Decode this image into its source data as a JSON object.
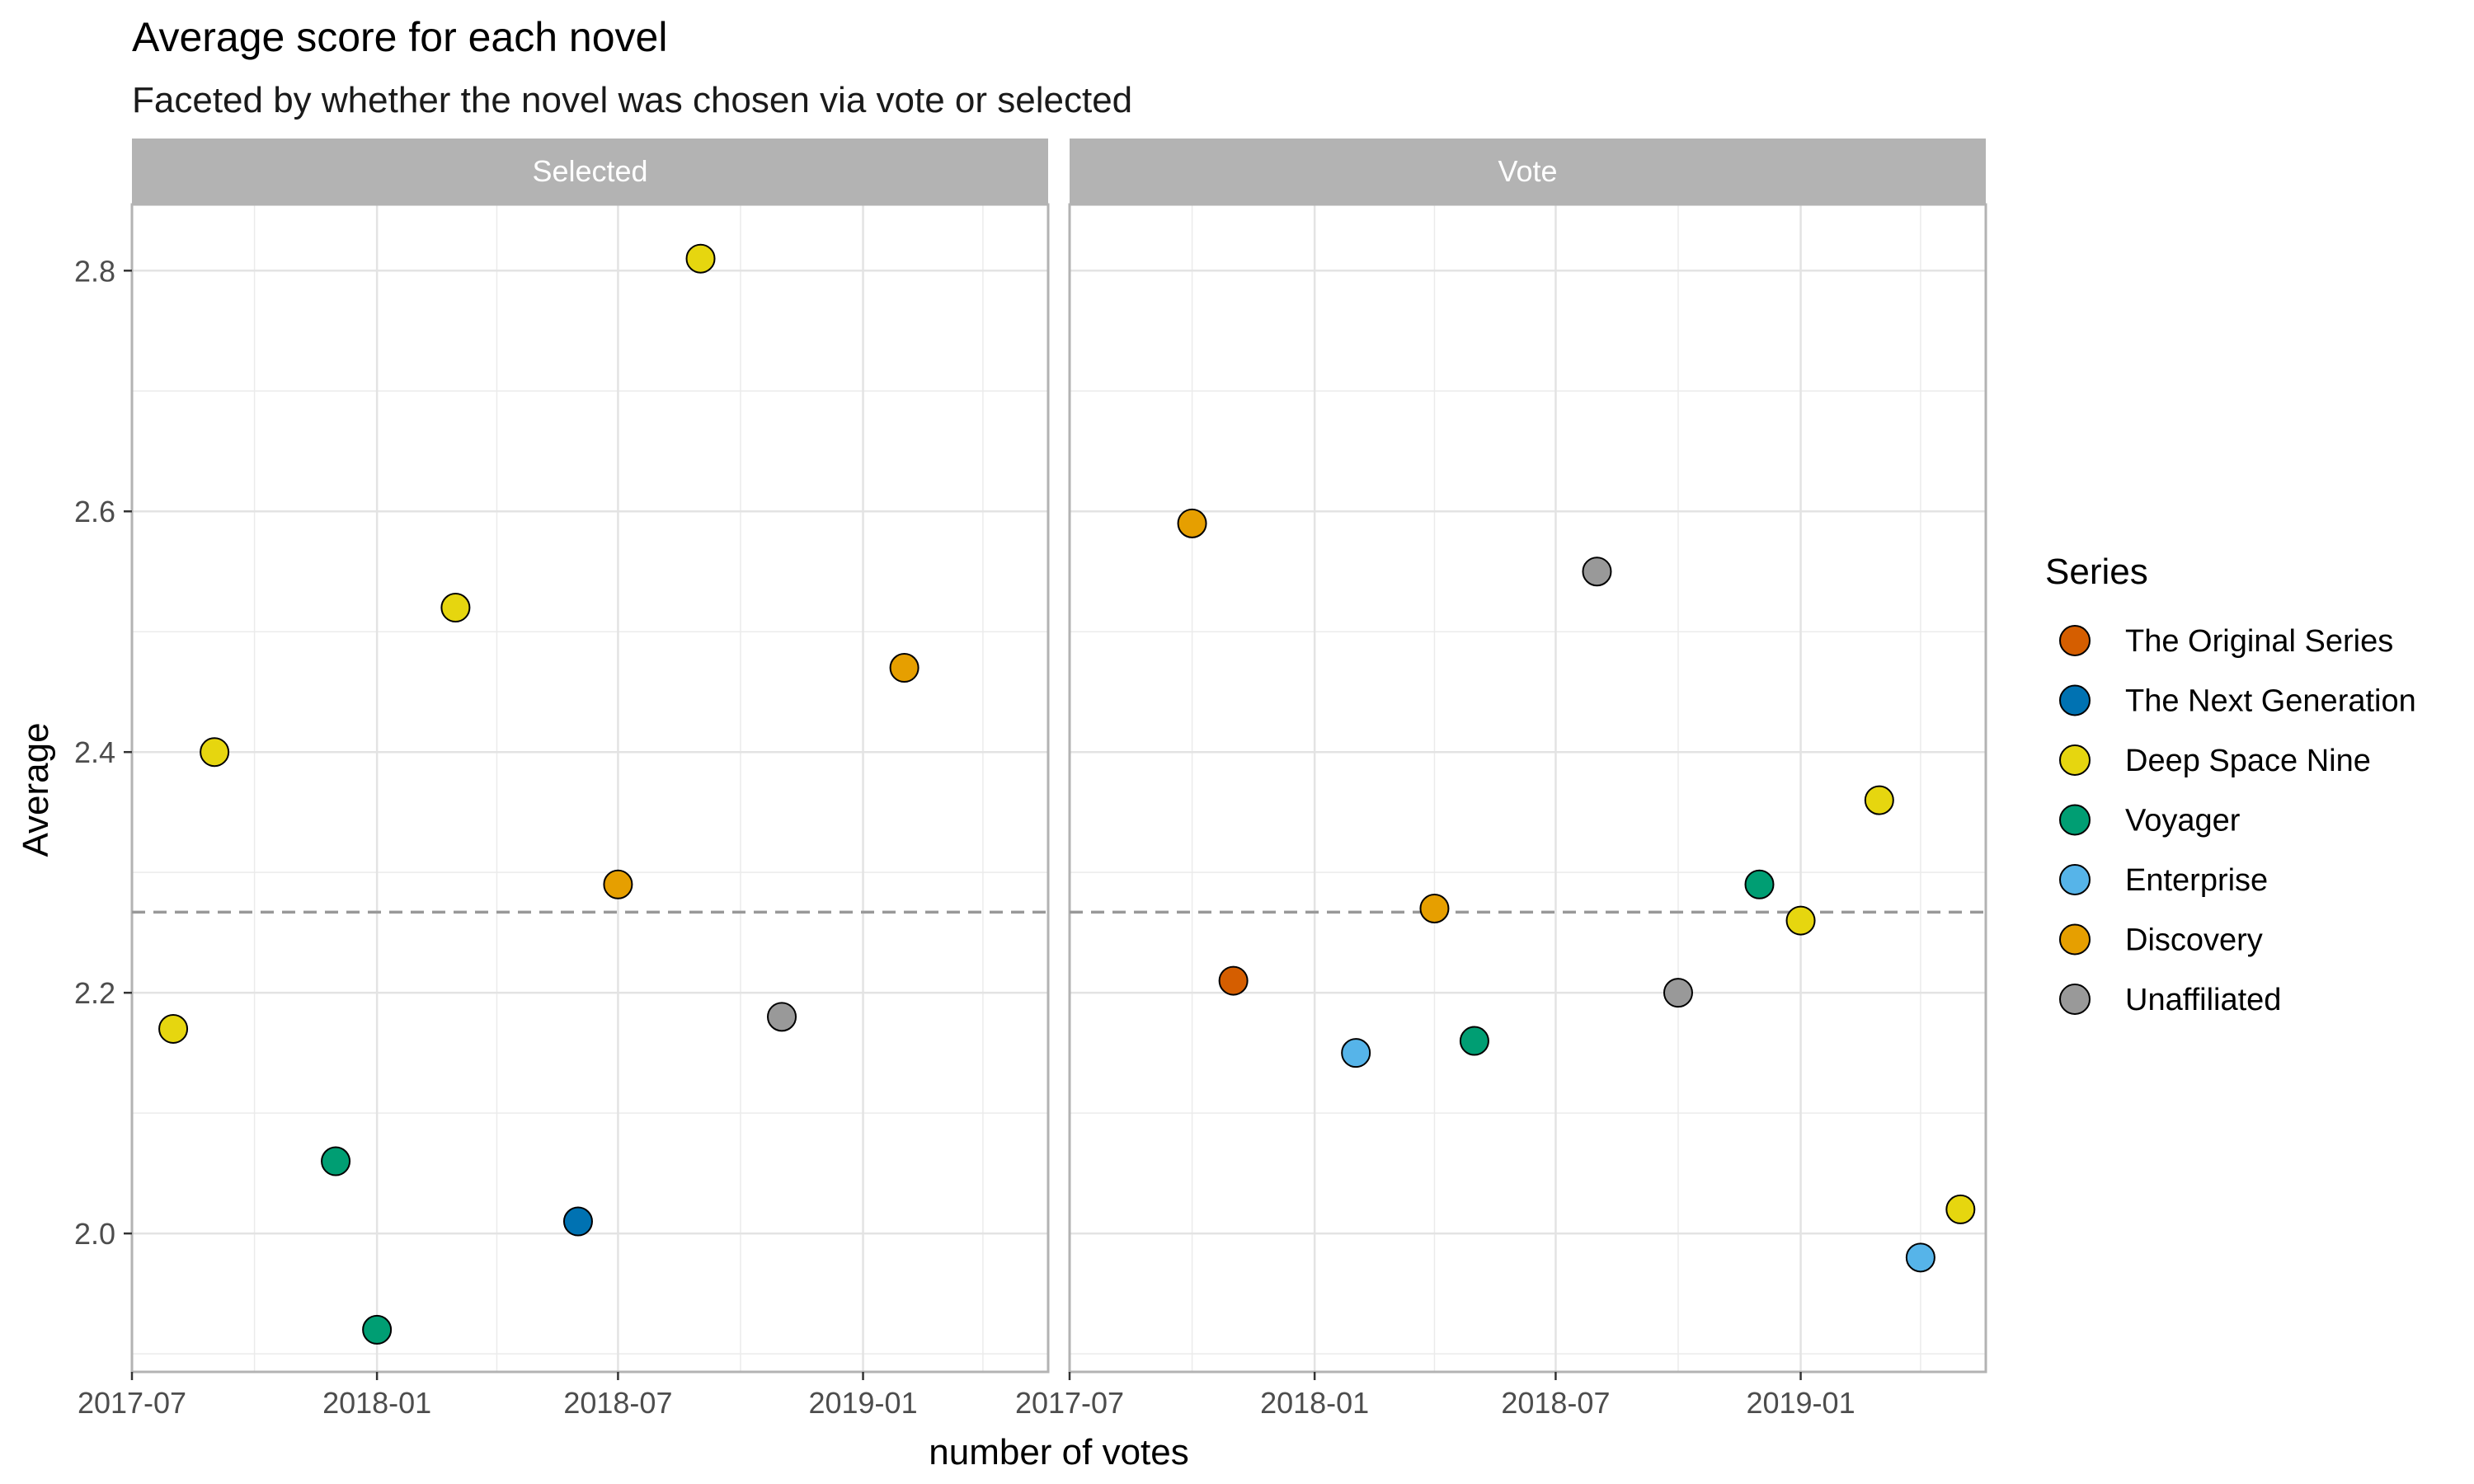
{
  "chart_data": {
    "type": "scatter",
    "title": "Average score for each novel",
    "subtitle": "Faceted by whether the novel was chosen via vote or selected",
    "xlabel": "number of votes",
    "ylabel": "Average",
    "x_ticks": [
      "2017-07",
      "2018-01",
      "2018-07",
      "2019-01"
    ],
    "y_ticks": [
      "2.0",
      "2.2",
      "2.4",
      "2.6",
      "2.8"
    ],
    "xlim": [
      "2017-07-01",
      "2019-05-20"
    ],
    "ylim": [
      1.885,
      2.855
    ],
    "reference_line": {
      "y": 2.267,
      "style": "dashed",
      "color": "#999999"
    },
    "grid": true,
    "legend": {
      "title": "Series",
      "position": "right",
      "entries": [
        {
          "name": "The Original Series",
          "color": "#D55E00"
        },
        {
          "name": "The Next Generation",
          "color": "#0072B2"
        },
        {
          "name": "Deep Space Nine",
          "color": "#E6D60F"
        },
        {
          "name": "Voyager",
          "color": "#009E73"
        },
        {
          "name": "Enterprise",
          "color": "#56B4E9"
        },
        {
          "name": "Discovery",
          "color": "#E69F00"
        },
        {
          "name": "Unaffiliated",
          "color": "#999999"
        }
      ]
    },
    "facets": [
      {
        "label": "Selected",
        "points": [
          {
            "x": "2017-08-01",
            "y": 2.17,
            "series": "Deep Space Nine"
          },
          {
            "x": "2017-09-01",
            "y": 2.4,
            "series": "Deep Space Nine"
          },
          {
            "x": "2017-12-01",
            "y": 2.06,
            "series": "Voyager"
          },
          {
            "x": "2018-01-01",
            "y": 1.92,
            "series": "Voyager"
          },
          {
            "x": "2018-03-01",
            "y": 2.52,
            "series": "Deep Space Nine"
          },
          {
            "x": "2018-06-01",
            "y": 2.01,
            "series": "The Next Generation"
          },
          {
            "x": "2018-07-01",
            "y": 2.29,
            "series": "Discovery"
          },
          {
            "x": "2018-09-01",
            "y": 2.81,
            "series": "Deep Space Nine"
          },
          {
            "x": "2018-11-01",
            "y": 2.18,
            "series": "Unaffiliated"
          },
          {
            "x": "2019-02-01",
            "y": 2.47,
            "series": "Discovery"
          }
        ]
      },
      {
        "label": "Vote",
        "points": [
          {
            "x": "2017-10-01",
            "y": 2.59,
            "series": "Discovery"
          },
          {
            "x": "2017-11-01",
            "y": 2.21,
            "series": "The Original Series"
          },
          {
            "x": "2018-02-01",
            "y": 2.15,
            "series": "Enterprise"
          },
          {
            "x": "2018-04-01",
            "y": 2.27,
            "series": "Discovery"
          },
          {
            "x": "2018-05-01",
            "y": 2.16,
            "series": "Voyager"
          },
          {
            "x": "2018-08-01",
            "y": 2.55,
            "series": "Unaffiliated"
          },
          {
            "x": "2018-10-01",
            "y": 2.2,
            "series": "Unaffiliated"
          },
          {
            "x": "2018-12-01",
            "y": 2.29,
            "series": "Voyager"
          },
          {
            "x": "2019-01-01",
            "y": 2.26,
            "series": "Deep Space Nine"
          },
          {
            "x": "2019-03-01",
            "y": 2.36,
            "series": "Deep Space Nine"
          },
          {
            "x": "2019-04-01",
            "y": 1.98,
            "series": "Enterprise"
          },
          {
            "x": "2019-05-01",
            "y": 2.02,
            "series": "Deep Space Nine"
          }
        ]
      }
    ]
  }
}
